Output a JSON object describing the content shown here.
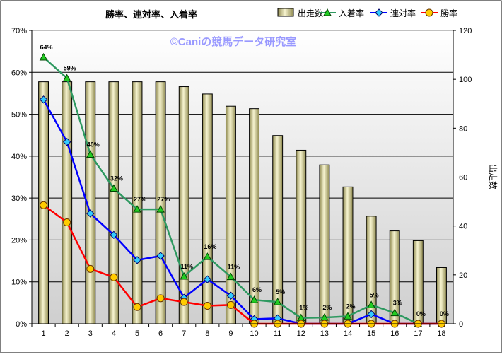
{
  "chart_data": {
    "type": "bar",
    "title": "勝率、連対率、入着率",
    "watermark": "©Caniの競馬データ研究室",
    "xlabel": "",
    "ylabel": "",
    "y2label": "出走数",
    "categories": [
      "1",
      "2",
      "3",
      "4",
      "5",
      "6",
      "7",
      "8",
      "9",
      "10",
      "11",
      "12",
      "13",
      "14",
      "15",
      "16",
      "17",
      "18"
    ],
    "ylim": [
      0,
      70
    ],
    "y2lim": [
      0,
      120
    ],
    "yticks": [
      "0%",
      "10%",
      "20%",
      "30%",
      "40%",
      "50%",
      "60%",
      "70%"
    ],
    "y2ticks": [
      "0",
      "20",
      "40",
      "60",
      "80",
      "100",
      "120"
    ],
    "legend_position": "top",
    "grid": true,
    "series": [
      {
        "name": "出走数",
        "kind": "bar",
        "axis": "right",
        "color": "#e8e4b4",
        "values": [
          99,
          99,
          99,
          99,
          99,
          99,
          97,
          94,
          89,
          88,
          77,
          71,
          65,
          56,
          44,
          38,
          34,
          23
        ]
      },
      {
        "name": "入着率",
        "kind": "line",
        "axis": "left",
        "color": "#2e9960",
        "marker": "triangle",
        "marker_color": "#22cc22",
        "values": [
          63.6,
          58.6,
          40.4,
          32.3,
          27.3,
          27.3,
          11.3,
          16.0,
          11.2,
          5.7,
          5.2,
          1.4,
          1.5,
          1.8,
          4.5,
          2.6,
          0,
          0
        ],
        "data_labels": [
          "64%",
          "59%",
          "40%",
          "32%",
          "27%",
          "27%",
          "11%",
          "16%",
          "11%",
          "6%",
          "5%",
          "1%",
          "2%",
          "2%",
          "5%",
          "3%",
          "0%",
          "0%"
        ]
      },
      {
        "name": "連対率",
        "kind": "line",
        "axis": "left",
        "color": "#0000ff",
        "marker": "diamond",
        "marker_color": "#33ccff",
        "values": [
          53.5,
          43.4,
          26.3,
          21.2,
          15.2,
          16.2,
          6.2,
          10.6,
          6.7,
          1.1,
          1.3,
          0,
          0,
          0,
          2.3,
          0,
          0,
          0
        ]
      },
      {
        "name": "勝率",
        "kind": "line",
        "axis": "left",
        "color": "#ff0000",
        "marker": "circle",
        "marker_color": "#ffcc00",
        "values": [
          28.3,
          24.2,
          13.1,
          11.1,
          4.0,
          6.1,
          5.2,
          4.3,
          4.5,
          0,
          0,
          0,
          0,
          0,
          0,
          0,
          0,
          0
        ]
      }
    ],
    "colors": {
      "plot_top": "#ffffff",
      "plot_bottom": "#cfcfcf",
      "gridline": "#000000"
    }
  }
}
